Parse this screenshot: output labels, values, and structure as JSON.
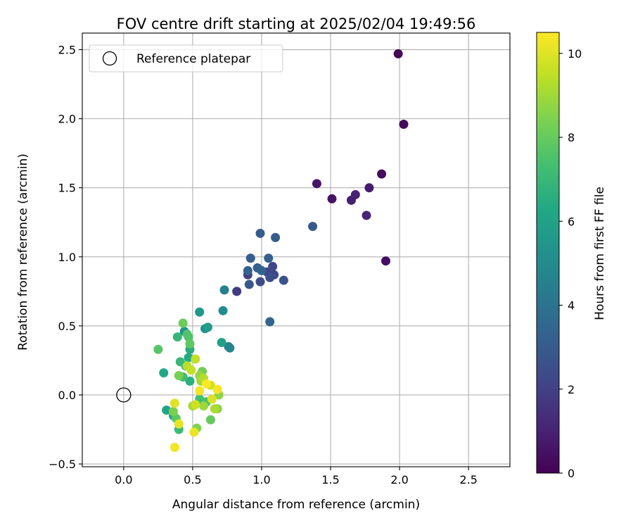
{
  "chart_data": {
    "type": "scatter",
    "title": "FOV centre drift starting at 2025/02/04 19:49:56",
    "xlabel": "Angular distance from reference (arcmin)",
    "ylabel": "Rotation from reference (arcmin)",
    "xlim": [
      -0.3,
      2.8
    ],
    "ylim": [
      -0.52,
      2.62
    ],
    "xticks": [
      0.0,
      0.5,
      1.0,
      1.5,
      2.0,
      2.5
    ],
    "yticks": [
      -0.5,
      0.0,
      0.5,
      1.0,
      1.5,
      2.0,
      2.5
    ],
    "xtick_labels": [
      "0.0",
      "0.5",
      "1.0",
      "1.5",
      "2.0",
      "2.5"
    ],
    "ytick_labels": [
      "−0.5",
      "0.0",
      "0.5",
      "1.0",
      "1.5",
      "2.0",
      "2.5"
    ],
    "grid": true,
    "colormap": "viridis",
    "colorbar": {
      "label": "Hours from first FF file",
      "range": [
        0,
        10.5
      ],
      "ticks": [
        0,
        2,
        4,
        6,
        8,
        10
      ],
      "tick_labels": [
        "0",
        "2",
        "4",
        "6",
        "8",
        "10"
      ]
    },
    "legend": {
      "placement": "top-left",
      "entries": [
        {
          "label": "Reference platepar",
          "marker": "open-circle"
        }
      ]
    },
    "reference": {
      "x": 0.0,
      "y": 0.0
    },
    "points": [
      {
        "x": 1.99,
        "y": 2.47,
        "c": 0.1
      },
      {
        "x": 2.03,
        "y": 1.96,
        "c": 0.2
      },
      {
        "x": 1.87,
        "y": 1.6,
        "c": 0.3
      },
      {
        "x": 1.9,
        "y": 0.97,
        "c": 0.4
      },
      {
        "x": 1.51,
        "y": 1.42,
        "c": 0.5
      },
      {
        "x": 1.4,
        "y": 1.53,
        "c": 0.6
      },
      {
        "x": 1.78,
        "y": 1.5,
        "c": 0.8
      },
      {
        "x": 1.65,
        "y": 1.41,
        "c": 0.9
      },
      {
        "x": 1.68,
        "y": 1.45,
        "c": 1.0
      },
      {
        "x": 1.76,
        "y": 1.3,
        "c": 1.1
      },
      {
        "x": 0.82,
        "y": 0.75,
        "c": 1.8
      },
      {
        "x": 0.9,
        "y": 0.87,
        "c": 2.0
      },
      {
        "x": 1.04,
        "y": 0.89,
        "c": 2.1
      },
      {
        "x": 1.08,
        "y": 0.93,
        "c": 2.2
      },
      {
        "x": 1.09,
        "y": 0.87,
        "c": 2.3
      },
      {
        "x": 0.99,
        "y": 0.82,
        "c": 2.4
      },
      {
        "x": 1.06,
        "y": 0.85,
        "c": 2.5
      },
      {
        "x": 1.16,
        "y": 0.83,
        "c": 2.7
      },
      {
        "x": 0.91,
        "y": 0.8,
        "c": 2.8
      },
      {
        "x": 1.37,
        "y": 1.22,
        "c": 2.9
      },
      {
        "x": 1.1,
        "y": 1.14,
        "c": 3.0
      },
      {
        "x": 0.99,
        "y": 1.17,
        "c": 3.0
      },
      {
        "x": 0.92,
        "y": 0.99,
        "c": 3.1
      },
      {
        "x": 1.05,
        "y": 0.99,
        "c": 3.2
      },
      {
        "x": 0.97,
        "y": 0.92,
        "c": 3.2
      },
      {
        "x": 1.0,
        "y": 0.9,
        "c": 3.3
      },
      {
        "x": 0.9,
        "y": 0.9,
        "c": 3.3
      },
      {
        "x": 1.06,
        "y": 0.53,
        "c": 3.4
      },
      {
        "x": 0.73,
        "y": 0.76,
        "c": 4.5
      },
      {
        "x": 0.77,
        "y": 0.34,
        "c": 4.6
      },
      {
        "x": 0.76,
        "y": 0.35,
        "c": 4.7
      },
      {
        "x": 0.72,
        "y": 0.61,
        "c": 5.0
      },
      {
        "x": 0.59,
        "y": 0.48,
        "c": 5.2
      },
      {
        "x": 0.44,
        "y": 0.46,
        "c": 5.4
      },
      {
        "x": 0.55,
        "y": 0.6,
        "c": 5.6
      },
      {
        "x": 0.61,
        "y": 0.49,
        "c": 5.8
      },
      {
        "x": 0.71,
        "y": 0.38,
        "c": 6.0
      },
      {
        "x": 0.31,
        "y": -0.11,
        "c": 6.1
      },
      {
        "x": 0.36,
        "y": -0.15,
        "c": 6.2
      },
      {
        "x": 0.29,
        "y": 0.16,
        "c": 6.3
      },
      {
        "x": 0.47,
        "y": 0.27,
        "c": 6.4
      },
      {
        "x": 0.48,
        "y": 0.33,
        "c": 6.5
      },
      {
        "x": 0.48,
        "y": 0.1,
        "c": 6.6
      },
      {
        "x": 0.45,
        "y": 0.21,
        "c": 6.7
      },
      {
        "x": 0.39,
        "y": 0.42,
        "c": 6.9
      },
      {
        "x": 0.41,
        "y": 0.24,
        "c": 7.0
      },
      {
        "x": 0.4,
        "y": -0.25,
        "c": 7.1
      },
      {
        "x": 0.43,
        "y": 0.13,
        "c": 7.2
      },
      {
        "x": 0.55,
        "y": -0.03,
        "c": 7.3
      },
      {
        "x": 0.6,
        "y": -0.05,
        "c": 7.4
      },
      {
        "x": 0.47,
        "y": 0.42,
        "c": 7.5
      },
      {
        "x": 0.46,
        "y": 0.44,
        "c": 7.6
      },
      {
        "x": 0.25,
        "y": 0.33,
        "c": 7.7
      },
      {
        "x": 0.38,
        "y": -0.17,
        "c": 7.8
      },
      {
        "x": 0.48,
        "y": 0.37,
        "c": 7.9
      },
      {
        "x": 0.63,
        "y": -0.18,
        "c": 8.0
      },
      {
        "x": 0.43,
        "y": 0.52,
        "c": 8.1
      },
      {
        "x": 0.57,
        "y": 0.17,
        "c": 8.2
      },
      {
        "x": 0.4,
        "y": 0.14,
        "c": 8.3
      },
      {
        "x": 0.36,
        "y": -0.12,
        "c": 8.4
      },
      {
        "x": 0.53,
        "y": -0.24,
        "c": 8.5
      },
      {
        "x": 0.68,
        "y": -0.1,
        "c": 8.6
      },
      {
        "x": 0.69,
        "y": 0.0,
        "c": 8.7
      },
      {
        "x": 0.55,
        "y": 0.14,
        "c": 8.8
      },
      {
        "x": 0.58,
        "y": -0.08,
        "c": 8.9
      },
      {
        "x": 0.56,
        "y": 0.1,
        "c": 9.0
      },
      {
        "x": 0.5,
        "y": -0.08,
        "c": 9.1
      },
      {
        "x": 0.66,
        "y": -0.1,
        "c": 9.2
      },
      {
        "x": 0.58,
        "y": 0.12,
        "c": 9.3
      },
      {
        "x": 0.46,
        "y": 0.21,
        "c": 9.4
      },
      {
        "x": 0.52,
        "y": 0.26,
        "c": 9.5
      },
      {
        "x": 0.49,
        "y": 0.18,
        "c": 9.6
      },
      {
        "x": 0.52,
        "y": -0.07,
        "c": 9.7
      },
      {
        "x": 0.63,
        "y": 0.07,
        "c": 9.8
      },
      {
        "x": 0.64,
        "y": -0.03,
        "c": 9.9
      },
      {
        "x": 0.37,
        "y": -0.06,
        "c": 10.0
      },
      {
        "x": 0.4,
        "y": -0.21,
        "c": 10.1
      },
      {
        "x": 0.51,
        "y": -0.27,
        "c": 10.2
      },
      {
        "x": 0.37,
        "y": -0.38,
        "c": 10.3
      },
      {
        "x": 0.55,
        "y": 0.03,
        "c": 10.35
      },
      {
        "x": 0.68,
        "y": 0.04,
        "c": 10.4
      },
      {
        "x": 0.6,
        "y": 0.08,
        "c": 10.45
      }
    ]
  }
}
